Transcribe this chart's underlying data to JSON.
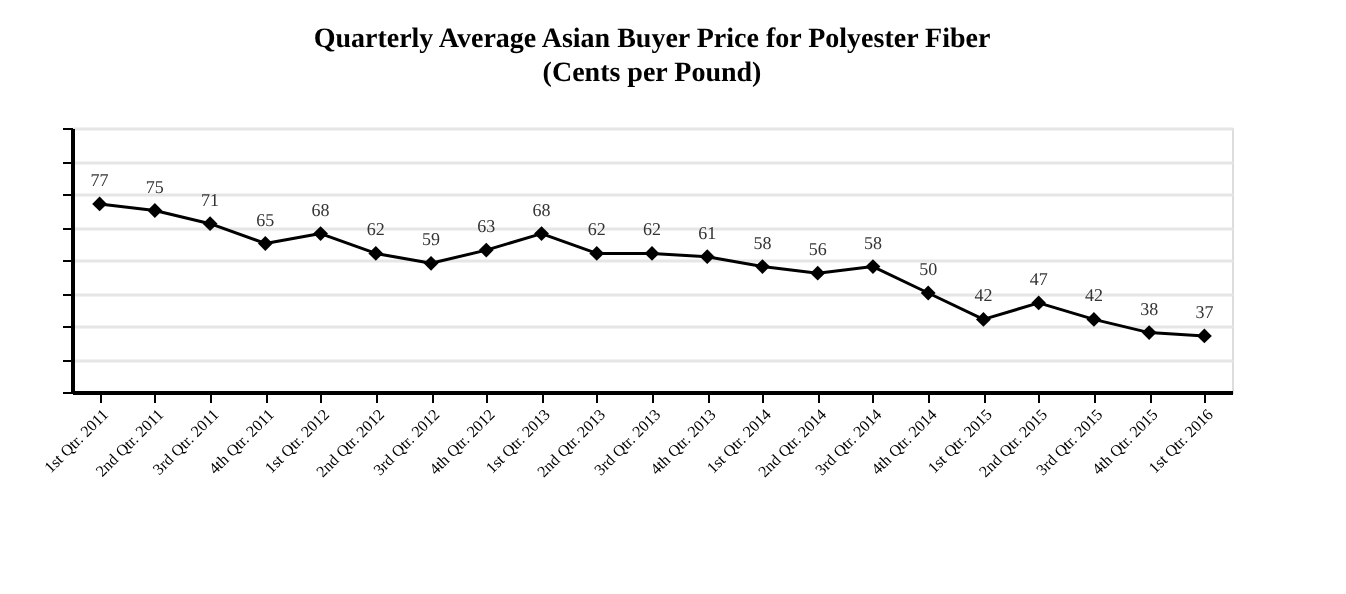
{
  "chart_data": {
    "type": "line",
    "title": "Quarterly Average Asian Buyer Price for Polyester Fiber",
    "subtitle": "(Cents per Pound)",
    "categories": [
      "1st Qtr. 2011",
      "2nd Qtr. 2011",
      "3rd Qtr. 2011",
      "4th Qtr. 2011",
      "1st Qtr. 2012",
      "2nd Qtr. 2012",
      "3rd Qtr. 2012",
      "4th Qtr. 2012",
      "1st Qtr. 2013",
      "2nd Qtr. 2013",
      "3rd Qtr. 2013",
      "4th Qtr. 2013",
      "1st Qtr. 2014",
      "2nd Qtr. 2014",
      "3rd Qtr. 2014",
      "4th Qtr. 2014",
      "1st Qtr. 2015",
      "2nd Qtr. 2015",
      "3rd Qtr. 2015",
      "4th Qtr. 2015",
      "1st Qtr. 2016"
    ],
    "series": [
      {
        "color": "#000000",
        "values": [
          77,
          75,
          71,
          65,
          68,
          62,
          59,
          63,
          68,
          62,
          62,
          61,
          58,
          56,
          58,
          50,
          42,
          47,
          42,
          38,
          37
        ]
      }
    ],
    "ylim": [
      20,
      100
    ],
    "yticks": [
      {
        "value": 20,
        "label": null
      },
      {
        "value": 30,
        "label": null
      },
      {
        "value": 40,
        "label": null
      },
      {
        "value": 50,
        "label": null
      },
      {
        "value": 60,
        "label": null
      },
      {
        "value": 70,
        "label": null
      },
      {
        "value": 80,
        "label": null
      },
      {
        "value": 90,
        "label": null
      },
      {
        "value": 100,
        "label": null
      }
    ],
    "tick_labels": "x",
    "grid": "y",
    "marker": "diamond",
    "line_style": "solid",
    "data_labels": true
  }
}
